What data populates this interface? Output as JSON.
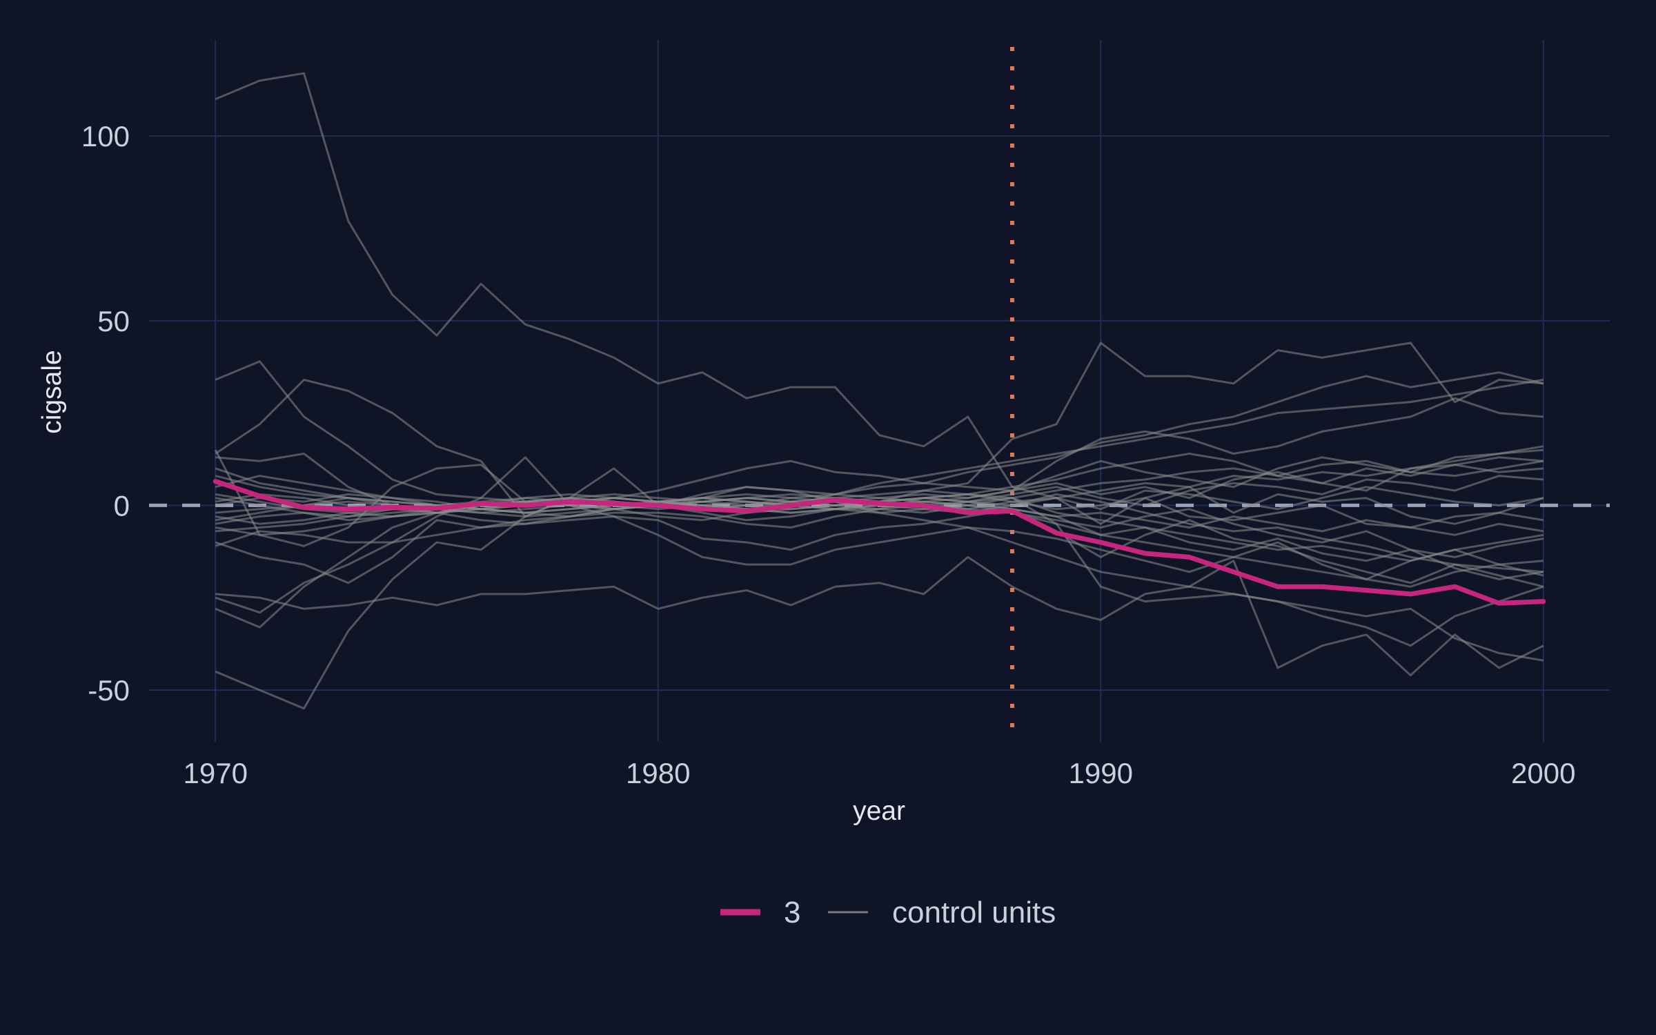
{
  "chart_data": {
    "type": "line",
    "xlabel": "year",
    "ylabel": "cigsale",
    "xlim": [
      1968.5,
      2001.5
    ],
    "ylim": [
      -64,
      126
    ],
    "x_ticks": [
      1970,
      1980,
      1990,
      2000
    ],
    "y_ticks": [
      -50,
      0,
      50,
      100
    ],
    "x_tick_labels": [
      "1970",
      "1980",
      "1990",
      "2000"
    ],
    "y_tick_labels": [
      "-50",
      "0",
      "50",
      "100"
    ],
    "grid": true,
    "reference_line": {
      "y": 0,
      "style": "dashed"
    },
    "treatment_line": {
      "x": 1988,
      "style": "dotted"
    },
    "legend": {
      "placement": "bottom",
      "items": [
        "3",
        "control units"
      ]
    },
    "colors": {
      "background": "#0f1526",
      "grid": "#1f2d57",
      "treated": "#c8257f",
      "control": "#8c8c8c",
      "reference": "#9aa3b8",
      "treatment": "#e0785a"
    },
    "x": [
      1970,
      1971,
      1972,
      1973,
      1974,
      1975,
      1976,
      1977,
      1978,
      1979,
      1980,
      1981,
      1982,
      1983,
      1984,
      1985,
      1986,
      1987,
      1988,
      1989,
      1990,
      1991,
      1992,
      1993,
      1994,
      1995,
      1996,
      1997,
      1998,
      1999,
      2000
    ],
    "series": [
      {
        "name": "3",
        "role": "treated",
        "values": [
          6.5,
          2.5,
          -0.5,
          -1,
          -0.5,
          -0.8,
          0.5,
          0,
          1,
          0.5,
          0,
          -1,
          -1.5,
          0,
          1.5,
          0.5,
          0,
          -2,
          -1.5,
          -7.5,
          -10,
          -13,
          -14,
          -18,
          -22,
          -22,
          -23,
          -24,
          -22,
          -26.5,
          -26
        ]
      },
      {
        "name": "control units",
        "role": "control",
        "values": [
          110,
          115,
          117,
          77,
          57,
          46,
          60,
          49,
          45,
          40,
          33,
          36,
          29,
          32,
          32,
          19,
          16,
          24,
          5,
          2,
          -5,
          2,
          5,
          -2,
          3,
          1,
          2,
          -3,
          -5,
          -2,
          2
        ]
      },
      {
        "role": "control",
        "values": [
          34,
          39,
          24,
          16,
          7,
          3,
          2,
          1,
          0,
          -1,
          -3,
          -4,
          -2,
          0,
          3,
          5,
          6,
          9,
          11,
          13,
          17,
          19,
          22,
          24,
          28,
          32,
          35,
          32,
          34,
          36,
          33
        ]
      },
      {
        "role": "control",
        "values": [
          14,
          22,
          34,
          31,
          25,
          16,
          12,
          -3,
          2,
          10,
          0,
          -2,
          -4,
          -3,
          -1,
          1,
          4,
          6,
          18,
          22,
          44,
          35,
          35,
          33,
          42,
          40,
          42,
          44,
          28,
          34,
          33
        ]
      },
      {
        "role": "control",
        "values": [
          15,
          -8,
          -11,
          -6,
          5,
          10,
          11,
          1,
          0,
          2,
          4,
          7,
          10,
          12,
          9,
          8,
          6,
          5,
          4,
          12,
          18,
          20,
          18,
          14,
          16,
          20,
          22,
          24,
          29,
          25,
          24
        ]
      },
      {
        "role": "control",
        "values": [
          -45,
          -50,
          -55,
          -34,
          -20,
          -10,
          -12,
          -3,
          2,
          -1,
          0,
          2,
          5,
          4,
          3,
          6,
          8,
          10,
          12,
          14,
          16,
          18,
          20,
          22,
          25,
          26,
          27,
          28,
          30,
          32,
          34
        ]
      },
      {
        "role": "control",
        "values": [
          -28,
          -33,
          -22,
          -14,
          -6,
          -2,
          0,
          2,
          3,
          2,
          1,
          0,
          -1,
          1,
          2,
          3,
          4,
          3,
          2,
          -5,
          -22,
          -26,
          -25,
          -24,
          -26,
          -28,
          -30,
          -28,
          -36,
          -40,
          -42
        ]
      },
      {
        "role": "control",
        "values": [
          -24,
          -25,
          -28,
          -27,
          -25,
          -27,
          -24,
          -24,
          -23,
          -22,
          -28,
          -25,
          -23,
          -27,
          -22,
          -21,
          -24,
          -14,
          -22,
          -28,
          -31,
          -24,
          -22,
          -15,
          -44,
          -38,
          -35,
          -46,
          -35,
          -44,
          -38
        ]
      },
      {
        "role": "control",
        "values": [
          -25,
          -29,
          -21,
          -16,
          -10,
          -3,
          2,
          13,
          0,
          -3,
          -8,
          -14,
          -16,
          -16,
          -12,
          -10,
          -8,
          -6,
          -10,
          -14,
          -18,
          -20,
          -22,
          -24,
          -26,
          -30,
          -33,
          -38,
          -30,
          -26,
          -22
        ]
      },
      {
        "role": "control",
        "values": [
          -10,
          -14,
          -16,
          -21,
          -14,
          -4,
          -6,
          -5,
          -4,
          -3,
          -4,
          -9,
          -10,
          -12,
          -8,
          -6,
          -5,
          -3,
          -1,
          -3,
          -8,
          -10,
          -12,
          -14,
          -16,
          -18,
          -20,
          -22,
          -18,
          -16,
          -15
        ]
      },
      {
        "role": "control",
        "values": [
          -11,
          -7,
          -8,
          -10,
          -10,
          -8,
          -6,
          -4,
          -3,
          -2,
          -2,
          -3,
          -5,
          -6,
          -3,
          -1,
          2,
          3,
          5,
          7,
          10,
          12,
          14,
          12,
          8,
          6,
          4,
          10,
          12,
          14,
          16
        ]
      },
      {
        "role": "control",
        "values": [
          13,
          12,
          14,
          5,
          0,
          -2,
          -4,
          -5,
          -3,
          -1,
          0,
          3,
          5,
          4,
          1,
          -2,
          -4,
          -6,
          -7,
          -9,
          -12,
          -15,
          -18,
          -14,
          -10,
          -16,
          -20,
          -15,
          -12,
          -10,
          -8
        ]
      },
      {
        "role": "control",
        "values": [
          5,
          8,
          6,
          4,
          2,
          1,
          -1,
          -2,
          -3,
          -1,
          0,
          1,
          2,
          1,
          0,
          -1,
          -2,
          0,
          2,
          4,
          6,
          7,
          9,
          10,
          8,
          11,
          12,
          9,
          8,
          10,
          12
        ]
      },
      {
        "role": "control",
        "values": [
          -5,
          -3,
          -2,
          -4,
          -3,
          -2,
          -1,
          0,
          1,
          0,
          1,
          2,
          3,
          2,
          1,
          0,
          -1,
          -2,
          0,
          3,
          1,
          -2,
          -5,
          -7,
          -6,
          -9,
          -11,
          -14,
          -16,
          -17,
          -18
        ]
      },
      {
        "role": "control",
        "values": [
          0,
          2,
          1,
          3,
          2,
          0,
          -1,
          1,
          2,
          1,
          0,
          -1,
          0,
          2,
          3,
          2,
          1,
          0,
          -2,
          -4,
          -6,
          -3,
          -1,
          -5,
          -8,
          -10,
          -7,
          -12,
          -14,
          -11,
          -9
        ]
      },
      {
        "role": "control",
        "values": [
          -3,
          -5,
          -4,
          -2,
          -1,
          0,
          1,
          2,
          1,
          0,
          -1,
          0,
          1,
          0,
          -1,
          -2,
          -1,
          1,
          3,
          5,
          2,
          0,
          4,
          6,
          5,
          3,
          7,
          6,
          4,
          8,
          7
        ]
      },
      {
        "role": "control",
        "values": [
          3,
          1,
          -1,
          -2,
          -3,
          -2,
          0,
          1,
          2,
          3,
          2,
          1,
          0,
          -1,
          0,
          1,
          2,
          3,
          1,
          -1,
          0,
          2,
          -3,
          -4,
          -2,
          0,
          -5,
          -6,
          -3,
          -2,
          -4
        ]
      },
      {
        "role": "control",
        "values": [
          -7,
          -6,
          -5,
          -3,
          -1,
          0,
          0,
          1,
          1,
          2,
          1,
          0,
          -1,
          -2,
          -1,
          0,
          1,
          2,
          4,
          8,
          12,
          9,
          7,
          5,
          10,
          13,
          11,
          9,
          13,
          14,
          15
        ]
      },
      {
        "role": "control",
        "values": [
          8,
          5,
          3,
          2,
          1,
          0,
          -1,
          -2,
          -1,
          0,
          1,
          2,
          1,
          0,
          -1,
          -1,
          0,
          1,
          2,
          -2,
          -4,
          -6,
          -8,
          -10,
          -12,
          -11,
          -13,
          -15,
          -12,
          -16,
          -19
        ]
      },
      {
        "role": "control",
        "values": [
          -2,
          -1,
          0,
          1,
          0,
          -1,
          -2,
          -1,
          0,
          1,
          0,
          -1,
          0,
          1,
          2,
          1,
          0,
          -1,
          1,
          2,
          -1,
          4,
          3,
          1,
          -1,
          2,
          5,
          3,
          1,
          0,
          2
        ]
      },
      {
        "role": "control",
        "values": [
          1,
          3,
          2,
          0,
          -1,
          -2,
          -1,
          0,
          1,
          2,
          1,
          0,
          -1,
          -2,
          -1,
          0,
          1,
          0,
          -1,
          -3,
          -2,
          -4,
          -6,
          -3,
          -5,
          -7,
          -4,
          -6,
          -8,
          -5,
          -7
        ]
      },
      {
        "role": "control",
        "values": [
          -6,
          -8,
          -7,
          -5,
          -3,
          -1,
          0,
          1,
          0,
          -1,
          0,
          1,
          2,
          1,
          0,
          1,
          2,
          1,
          0,
          2,
          4,
          6,
          5,
          8,
          7,
          9,
          8,
          10,
          11,
          9,
          10
        ]
      },
      {
        "role": "control",
        "values": [
          10,
          6,
          4,
          2,
          0,
          -1,
          -2,
          -3,
          -2,
          -1,
          0,
          1,
          2,
          3,
          2,
          1,
          0,
          -1,
          -2,
          -5,
          -8,
          -6,
          -10,
          -12,
          -9,
          -13,
          -15,
          -12,
          -17,
          -20,
          -18
        ]
      },
      {
        "role": "control",
        "values": [
          -4,
          -2,
          0,
          2,
          1,
          0,
          -1,
          -2,
          -1,
          0,
          1,
          2,
          1,
          0,
          1,
          2,
          3,
          2,
          4,
          6,
          3,
          5,
          2,
          7,
          9,
          6,
          10,
          8,
          11,
          13,
          12
        ]
      },
      {
        "role": "control",
        "values": [
          2,
          0,
          -2,
          -3,
          -2,
          -1,
          0,
          1,
          2,
          1,
          0,
          -1,
          -2,
          -1,
          0,
          1,
          2,
          1,
          -1,
          -7,
          -14,
          -8,
          -4,
          -9,
          -11,
          -15,
          -18,
          -21,
          -16,
          -19,
          -22
        ]
      }
    ]
  }
}
